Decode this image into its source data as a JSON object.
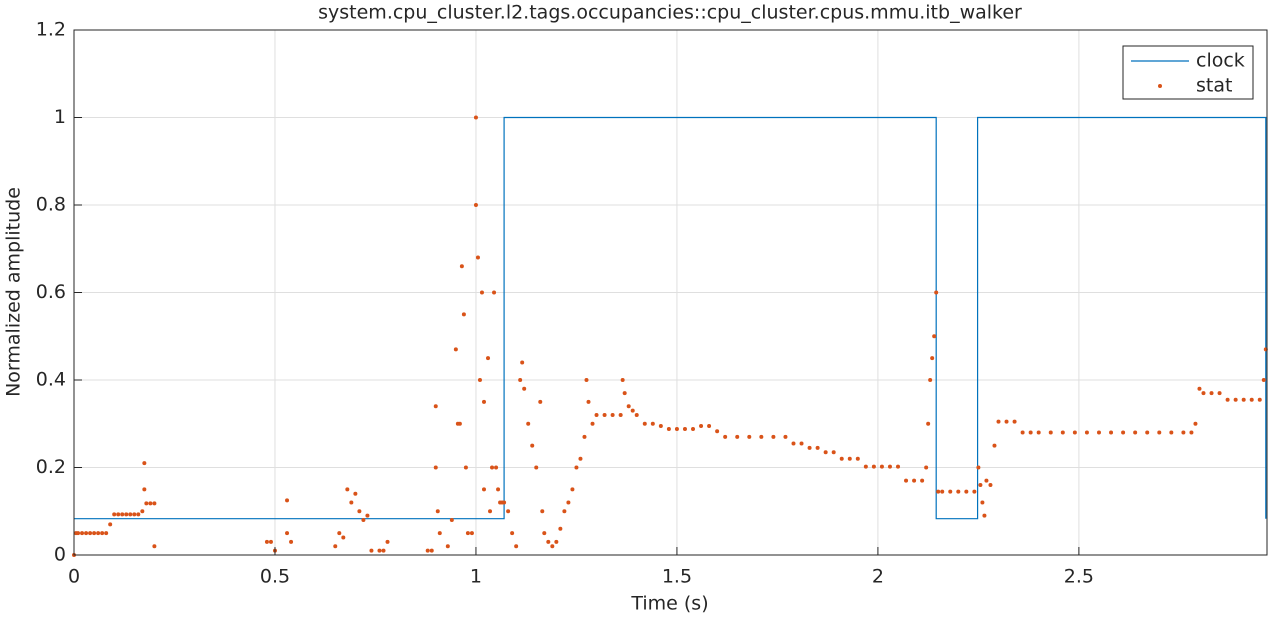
{
  "chart_data": {
    "type": "line_scatter",
    "title": "system.cpu_cluster.l2.tags.occupancies::cpu_cluster.cpus.mmu.itb_walker",
    "xlabel": "Time (s)",
    "ylabel": "Normalized amplitude",
    "xlim": [
      0,
      2.968
    ],
    "ylim": [
      0,
      1.2
    ],
    "xticks": [
      0,
      0.5,
      1,
      1.5,
      2,
      2.5
    ],
    "yticks": [
      0,
      0.2,
      0.4,
      0.6,
      0.8,
      1,
      1.2
    ],
    "grid": true,
    "legend": "northeast",
    "series": [
      {
        "name": "clock",
        "color": "#0072bd",
        "mode": "line",
        "x": [
          0,
          1.07,
          1.07,
          2.145,
          2.145,
          2.248,
          2.248,
          2.965,
          2.965
        ],
        "values": [
          0.083,
          0.083,
          1,
          1,
          0.083,
          0.083,
          1,
          1,
          0.083
        ]
      },
      {
        "name": "stat",
        "color": "#d95319",
        "mode": "scatter",
        "x": [
          0,
          0.005,
          0.01,
          0.02,
          0.03,
          0.04,
          0.05,
          0.06,
          0.07,
          0.08,
          0.09,
          0.1,
          0.11,
          0.12,
          0.13,
          0.14,
          0.15,
          0.16,
          0.17,
          0.175,
          0.175,
          0.18,
          0.19,
          0.2,
          0.2,
          0.48,
          0.49,
          0.5,
          0.53,
          0.53,
          0.54,
          0.65,
          0.66,
          0.67,
          0.68,
          0.69,
          0.7,
          0.71,
          0.72,
          0.73,
          0.74,
          0.76,
          0.77,
          0.78,
          0.88,
          0.89,
          0.9,
          0.9,
          0.905,
          0.91,
          0.93,
          0.94,
          0.95,
          0.955,
          0.96,
          0.965,
          0.97,
          0.975,
          0.98,
          0.99,
          1.0,
          1.0,
          1.005,
          1.01,
          1.015,
          1.02,
          1.02,
          1.03,
          1.035,
          1.04,
          1.045,
          1.05,
          1.055,
          1.06,
          1.065,
          1.07,
          1.08,
          1.09,
          1.1,
          1.11,
          1.115,
          1.12,
          1.13,
          1.14,
          1.15,
          1.16,
          1.165,
          1.17,
          1.18,
          1.19,
          1.2,
          1.21,
          1.22,
          1.23,
          1.24,
          1.25,
          1.26,
          1.27,
          1.275,
          1.28,
          1.29,
          1.3,
          1.32,
          1.34,
          1.36,
          1.365,
          1.37,
          1.38,
          1.39,
          1.4,
          1.42,
          1.44,
          1.46,
          1.48,
          1.5,
          1.52,
          1.54,
          1.56,
          1.58,
          1.6,
          1.62,
          1.65,
          1.68,
          1.71,
          1.74,
          1.77,
          1.79,
          1.81,
          1.83,
          1.85,
          1.87,
          1.89,
          1.91,
          1.93,
          1.95,
          1.97,
          1.99,
          2.01,
          2.03,
          2.05,
          2.07,
          2.09,
          2.11,
          2.12,
          2.125,
          2.13,
          2.135,
          2.14,
          2.145,
          2.15,
          2.16,
          2.18,
          2.2,
          2.22,
          2.24,
          2.25,
          2.255,
          2.26,
          2.265,
          2.27,
          2.28,
          2.29,
          2.3,
          2.32,
          2.34,
          2.36,
          2.38,
          2.4,
          2.43,
          2.46,
          2.49,
          2.52,
          2.55,
          2.58,
          2.61,
          2.64,
          2.67,
          2.7,
          2.73,
          2.76,
          2.78,
          2.79,
          2.8,
          2.81,
          2.83,
          2.85,
          2.87,
          2.89,
          2.91,
          2.93,
          2.95,
          2.96,
          2.965
        ],
        "values": [
          0,
          0.05,
          0.05,
          0.05,
          0.05,
          0.05,
          0.05,
          0.05,
          0.05,
          0.05,
          0.07,
          0.093,
          0.093,
          0.093,
          0.093,
          0.093,
          0.093,
          0.093,
          0.1,
          0.21,
          0.15,
          0.118,
          0.118,
          0.118,
          0.02,
          0.03,
          0.03,
          0.01,
          0.125,
          0.05,
          0.03,
          0.02,
          0.05,
          0.04,
          0.15,
          0.12,
          0.14,
          0.1,
          0.08,
          0.09,
          0.01,
          0.01,
          0.01,
          0.03,
          0.01,
          0.01,
          0.34,
          0.2,
          0.1,
          0.05,
          0.02,
          0.08,
          0.47,
          0.3,
          0.3,
          0.66,
          0.55,
          0.2,
          0.05,
          0.05,
          1.0,
          0.8,
          0.68,
          0.4,
          0.6,
          0.15,
          0.35,
          0.45,
          0.1,
          0.2,
          0.6,
          0.2,
          0.15,
          0.12,
          0.12,
          0.12,
          0.1,
          0.05,
          0.02,
          0.4,
          0.44,
          0.38,
          0.3,
          0.25,
          0.2,
          0.35,
          0.1,
          0.05,
          0.03,
          0.02,
          0.03,
          0.06,
          0.1,
          0.12,
          0.15,
          0.2,
          0.22,
          0.27,
          0.4,
          0.35,
          0.3,
          0.32,
          0.32,
          0.32,
          0.32,
          0.4,
          0.37,
          0.34,
          0.33,
          0.32,
          0.3,
          0.3,
          0.295,
          0.288,
          0.288,
          0.288,
          0.288,
          0.295,
          0.295,
          0.283,
          0.27,
          0.27,
          0.27,
          0.27,
          0.27,
          0.27,
          0.255,
          0.255,
          0.245,
          0.245,
          0.235,
          0.235,
          0.22,
          0.22,
          0.22,
          0.202,
          0.202,
          0.202,
          0.202,
          0.202,
          0.17,
          0.17,
          0.17,
          0.2,
          0.3,
          0.4,
          0.45,
          0.5,
          0.6,
          0.145,
          0.145,
          0.145,
          0.145,
          0.145,
          0.145,
          0.2,
          0.16,
          0.12,
          0.09,
          0.17,
          0.16,
          0.25,
          0.305,
          0.305,
          0.305,
          0.28,
          0.28,
          0.28,
          0.28,
          0.28,
          0.28,
          0.28,
          0.28,
          0.28,
          0.28,
          0.28,
          0.28,
          0.28,
          0.28,
          0.28,
          0.28,
          0.3,
          0.38,
          0.37,
          0.37,
          0.37,
          0.355,
          0.355,
          0.355,
          0.355,
          0.355,
          0.4,
          0.47
        ]
      }
    ]
  }
}
